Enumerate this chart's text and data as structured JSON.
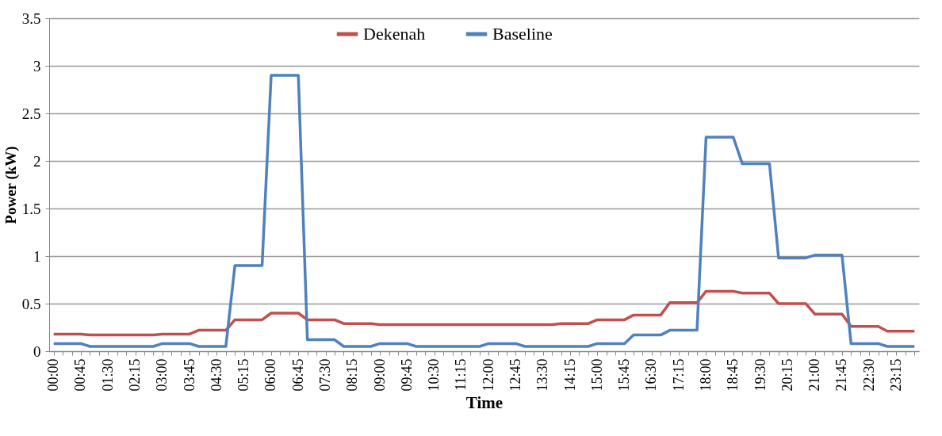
{
  "chart_data": {
    "type": "line",
    "xlabel": "Time",
    "ylabel": "Power (kW)",
    "categories": [
      "00:00",
      null,
      null,
      "00:45",
      null,
      null,
      "01:30",
      null,
      null,
      "02:15",
      null,
      null,
      "03:00",
      null,
      null,
      "03:45",
      null,
      null,
      "04:30",
      null,
      null,
      "05:15",
      null,
      null,
      "06:00",
      null,
      null,
      "06:45",
      null,
      null,
      "07:30",
      null,
      null,
      "08:15",
      null,
      null,
      "09:00",
      null,
      null,
      "09:45",
      null,
      null,
      "10:30",
      null,
      null,
      "11:15",
      null,
      null,
      "12:00",
      null,
      null,
      "12:45",
      null,
      null,
      "13:30",
      null,
      null,
      "14:15",
      null,
      null,
      "15:00",
      null,
      null,
      "15:45",
      null,
      null,
      "16:30",
      null,
      null,
      "17:15",
      null,
      null,
      "18:00",
      null,
      null,
      "18:45",
      null,
      null,
      "19:30",
      null,
      null,
      "20:15",
      null,
      null,
      "21:00",
      null,
      null,
      "21:45",
      null,
      null,
      "22:30",
      null,
      null,
      "23:15",
      null,
      null
    ],
    "series": [
      {
        "name": "Dekenah",
        "color": "#c0504d",
        "values": [
          0.18,
          0.18,
          0.18,
          0.18,
          0.17,
          0.17,
          0.17,
          0.17,
          0.17,
          0.17,
          0.17,
          0.17,
          0.18,
          0.18,
          0.18,
          0.18,
          0.22,
          0.22,
          0.22,
          0.22,
          0.33,
          0.33,
          0.33,
          0.33,
          0.4,
          0.4,
          0.4,
          0.4,
          0.33,
          0.33,
          0.33,
          0.33,
          0.29,
          0.29,
          0.29,
          0.29,
          0.28,
          0.28,
          0.28,
          0.28,
          0.28,
          0.28,
          0.28,
          0.28,
          0.28,
          0.28,
          0.28,
          0.28,
          0.28,
          0.28,
          0.28,
          0.28,
          0.28,
          0.28,
          0.28,
          0.28,
          0.29,
          0.29,
          0.29,
          0.29,
          0.33,
          0.33,
          0.33,
          0.33,
          0.38,
          0.38,
          0.38,
          0.38,
          0.51,
          0.51,
          0.51,
          0.51,
          0.63,
          0.63,
          0.63,
          0.63,
          0.61,
          0.61,
          0.61,
          0.61,
          0.5,
          0.5,
          0.5,
          0.5,
          0.39,
          0.39,
          0.39,
          0.39,
          0.26,
          0.26,
          0.26,
          0.26,
          0.21,
          0.21,
          0.21,
          0.21
        ]
      },
      {
        "name": "Baseline",
        "color": "#4f81bd",
        "values": [
          0.08,
          0.08,
          0.08,
          0.08,
          0.05,
          0.05,
          0.05,
          0.05,
          0.05,
          0.05,
          0.05,
          0.05,
          0.08,
          0.08,
          0.08,
          0.08,
          0.05,
          0.05,
          0.05,
          0.05,
          0.9,
          0.9,
          0.9,
          0.9,
          2.9,
          2.9,
          2.9,
          2.9,
          0.12,
          0.12,
          0.12,
          0.12,
          0.05,
          0.05,
          0.05,
          0.05,
          0.08,
          0.08,
          0.08,
          0.08,
          0.05,
          0.05,
          0.05,
          0.05,
          0.05,
          0.05,
          0.05,
          0.05,
          0.08,
          0.08,
          0.08,
          0.08,
          0.05,
          0.05,
          0.05,
          0.05,
          0.05,
          0.05,
          0.05,
          0.05,
          0.08,
          0.08,
          0.08,
          0.08,
          0.17,
          0.17,
          0.17,
          0.17,
          0.22,
          0.22,
          0.22,
          0.22,
          2.25,
          2.25,
          2.25,
          2.25,
          1.97,
          1.97,
          1.97,
          1.97,
          0.98,
          0.98,
          0.98,
          0.98,
          1.01,
          1.01,
          1.01,
          1.01,
          0.08,
          0.08,
          0.08,
          0.08,
          0.05,
          0.05,
          0.05,
          0.05
        ]
      }
    ],
    "ylim": [
      0,
      3.5
    ],
    "yticks": [
      0,
      0.5,
      1,
      1.5,
      2,
      2.5,
      3,
      3.5
    ],
    "grid": "y",
    "legend": "top",
    "line_style": "solid"
  }
}
